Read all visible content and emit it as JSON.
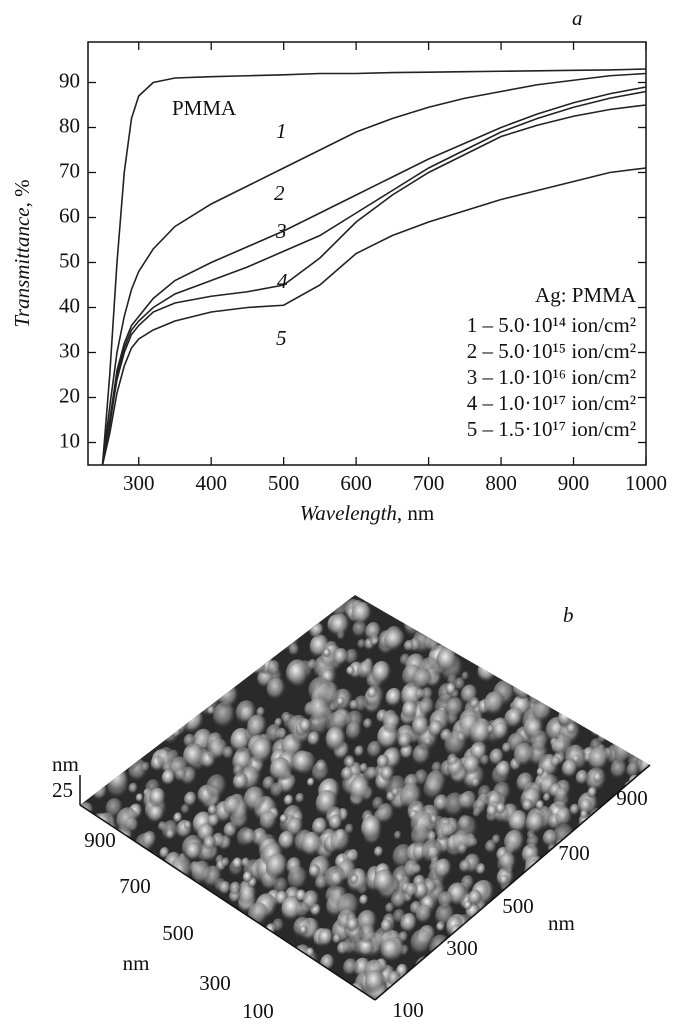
{
  "chart_data": {
    "type": "line",
    "panel_label": "a",
    "xlabel": {
      "text": "Wavelength",
      "unit": ", nm"
    },
    "ylabel": {
      "text": "Transmittance",
      "unit": ", %"
    },
    "x": [
      250,
      260,
      270,
      280,
      290,
      300,
      320,
      350,
      400,
      450,
      500,
      550,
      600,
      650,
      700,
      750,
      800,
      850,
      900,
      950,
      1000
    ],
    "xlim": [
      230,
      1000
    ],
    "xticks": [
      300,
      400,
      500,
      600,
      700,
      800,
      900,
      1000
    ],
    "ylim": [
      5,
      99
    ],
    "yticks": [
      10,
      20,
      30,
      40,
      50,
      60,
      70,
      80,
      90
    ],
    "legend_title": "Ag: PMMA",
    "series": [
      {
        "name": "PMMA",
        "color": "#222",
        "values": [
          5,
          25,
          50,
          70,
          82,
          87,
          90,
          91,
          91.3,
          91.5,
          91.7,
          92,
          92,
          92.2,
          92.3,
          92.4,
          92.5,
          92.6,
          92.7,
          92.8,
          93
        ]
      },
      {
        "name": "1 – 5.0·10¹⁴ ion/cm²",
        "curve_label": "1",
        "color": "#222",
        "values": [
          5,
          18,
          30,
          38,
          44,
          48,
          53,
          58,
          63,
          67,
          71,
          75,
          79,
          82,
          84.5,
          86.5,
          88,
          89.5,
          90.5,
          91.5,
          92
        ]
      },
      {
        "name": "2 – 5.0·10¹⁵ ion/cm²",
        "curve_label": "2",
        "color": "#222",
        "values": [
          5,
          15,
          26,
          32,
          36,
          38,
          42,
          46,
          50,
          53.5,
          57,
          61,
          65,
          69,
          73,
          76.5,
          80,
          83,
          85.5,
          87.5,
          89
        ]
      },
      {
        "name": "3 – 1.0·10¹⁶ ion/cm²",
        "curve_label": "3",
        "color": "#222",
        "values": [
          5,
          14,
          25,
          31,
          35,
          37,
          40,
          43,
          46,
          49,
          52.5,
          56,
          61,
          66,
          71,
          75,
          79,
          82,
          84.5,
          86.5,
          88
        ]
      },
      {
        "name": "4 – 1.0·10¹⁷ ion/cm²",
        "curve_label": "4",
        "color": "#222",
        "values": [
          5,
          14,
          24,
          30,
          34,
          36,
          39,
          41,
          42.5,
          43.5,
          45,
          51,
          59,
          65,
          70,
          74,
          78,
          80.5,
          82.5,
          84,
          85
        ]
      },
      {
        "name": "5 – 1.5·10¹⁷ ion/cm²",
        "curve_label": "5",
        "color": "#222",
        "values": [
          5,
          12,
          21,
          27,
          31,
          33,
          35,
          37,
          39,
          40,
          40.5,
          45,
          52,
          56,
          59,
          61.5,
          64,
          66,
          68,
          70,
          71
        ]
      }
    ]
  },
  "panel_b": {
    "panel_label": "b",
    "z_unit": "nm",
    "z_tick": "25",
    "left_ticks": [
      "900",
      "700",
      "500",
      "300",
      "100"
    ],
    "left_unit": "nm",
    "right_ticks": [
      "900",
      "700",
      "500",
      "300",
      "100"
    ],
    "right_unit": "nm"
  }
}
